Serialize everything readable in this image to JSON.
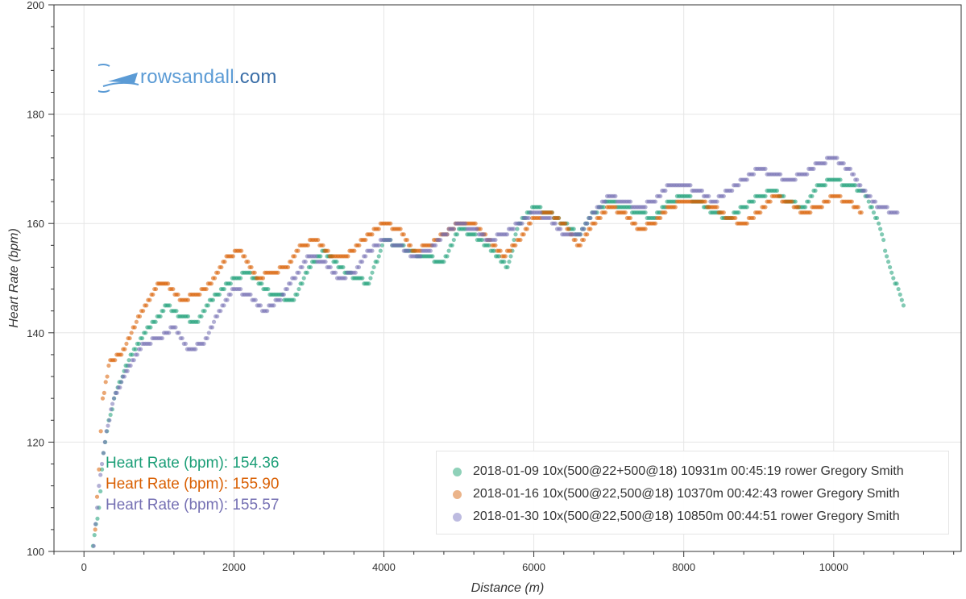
{
  "logo": {
    "text_main": "rowsandall",
    "text_suffix": ".com"
  },
  "summary": [
    {
      "text": "Heart Rate (bpm): 154.36",
      "color": "#1b9e77"
    },
    {
      "text": "Heart Rate (bpm): 155.90",
      "color": "#d95f02"
    },
    {
      "text": "Heart Rate (bpm): 155.57",
      "color": "#7570b3"
    }
  ],
  "legend": [
    {
      "label": "2018-01-09 10x(500@22+500@18) 10931m 00:45:19 rower Gregory Smith",
      "color": "#8fd1b9"
    },
    {
      "label": "2018-01-16 10x(500@22,500@18) 10370m 00:42:43 rower Gregory Smith",
      "color": "#ebb48a"
    },
    {
      "label": "2018-01-30 10x(500@22,500@18) 10850m 00:44:51 rower Gregory Smith",
      "color": "#bdbbe0"
    }
  ],
  "chart_data": {
    "type": "scatter",
    "xlabel": "Distance (m)",
    "ylabel": "Heart Rate (bpm)",
    "xlim": [
      -400,
      11700
    ],
    "ylim": [
      100,
      200
    ],
    "x_ticks": [
      0,
      2000,
      4000,
      6000,
      8000,
      10000
    ],
    "y_ticks": [
      100,
      120,
      140,
      160,
      180,
      200
    ],
    "grid": true,
    "legend_position": "bottom-right",
    "series": [
      {
        "color": "#1b9e77",
        "x": [
          120,
          200,
          260,
          330,
          450,
          600,
          800,
          1000,
          1100,
          1300,
          1500,
          1700,
          2000,
          2200,
          2500,
          2800,
          3000,
          3200,
          3500,
          3800,
          4000,
          4200,
          4500,
          4800,
          5000,
          5200,
          5450,
          5650,
          5800,
          6000,
          6200,
          6400,
          6600,
          6800,
          7000,
          7200,
          7400,
          7600,
          7800,
          8000,
          8200,
          8400,
          8600,
          8800,
          9000,
          9200,
          9400,
          9600,
          9800,
          10000,
          10200,
          10400,
          10600,
          10750,
          10931
        ],
        "y": [
          101,
          108,
          118,
          124,
          130,
          135,
          140,
          143,
          145,
          143,
          142,
          146,
          150,
          151,
          147,
          146,
          152,
          155,
          151,
          149,
          157,
          156,
          154,
          153,
          159,
          158,
          155,
          152,
          160,
          163,
          162,
          160,
          158,
          162,
          164,
          163,
          162,
          161,
          164,
          165,
          164,
          162,
          161,
          163,
          165,
          166,
          164,
          163,
          167,
          168,
          167,
          166,
          160,
          152,
          145
        ]
      },
      {
        "color": "#d95f02",
        "x": [
          150,
          200,
          250,
          350,
          500,
          700,
          900,
          1000,
          1100,
          1300,
          1500,
          1700,
          1900,
          2100,
          2300,
          2500,
          2700,
          2900,
          3100,
          3300,
          3500,
          3800,
          4000,
          4200,
          4400,
          4600,
          4800,
          5000,
          5200,
          5400,
          5600,
          5800,
          6000,
          6200,
          6400,
          6600,
          6800,
          7000,
          7200,
          7400,
          7600,
          7800,
          8000,
          8200,
          8400,
          8600,
          8800,
          9000,
          9200,
          9400,
          9600,
          9800,
          10000,
          10200,
          10370
        ],
        "y": [
          104,
          115,
          128,
          135,
          136,
          142,
          147,
          149,
          149,
          146,
          147,
          149,
          154,
          155,
          150,
          151,
          152,
          156,
          157,
          154,
          154,
          158,
          160,
          159,
          155,
          156,
          158,
          160,
          160,
          157,
          154,
          157,
          161,
          162,
          160,
          156,
          160,
          163,
          162,
          159,
          160,
          163,
          164,
          164,
          163,
          161,
          160,
          162,
          165,
          164,
          162,
          163,
          165,
          164,
          162
        ]
      },
      {
        "color": "#7570b3",
        "x": [
          130,
          200,
          300,
          400,
          500,
          600,
          800,
          1000,
          1200,
          1400,
          1600,
          1800,
          2000,
          2200,
          2400,
          2600,
          2800,
          3000,
          3200,
          3400,
          3600,
          3800,
          4000,
          4200,
          4400,
          4600,
          4800,
          5000,
          5200,
          5400,
          5600,
          5800,
          6000,
          6200,
          6400,
          6600,
          6800,
          7000,
          7200,
          7400,
          7600,
          7800,
          8000,
          8200,
          8400,
          8600,
          8800,
          9000,
          9200,
          9400,
          9600,
          9800,
          10000,
          10200,
          10400,
          10600,
          10850
        ],
        "y": [
          101,
          112,
          122,
          128,
          131,
          134,
          138,
          139,
          141,
          137,
          138,
          144,
          148,
          147,
          144,
          146,
          150,
          154,
          153,
          150,
          151,
          155,
          157,
          156,
          154,
          155,
          158,
          160,
          159,
          157,
          158,
          160,
          162,
          161,
          158,
          158,
          162,
          165,
          164,
          163,
          164,
          167,
          167,
          166,
          164,
          166,
          168,
          170,
          169,
          168,
          169,
          171,
          172,
          170,
          166,
          163,
          162
        ]
      }
    ]
  }
}
